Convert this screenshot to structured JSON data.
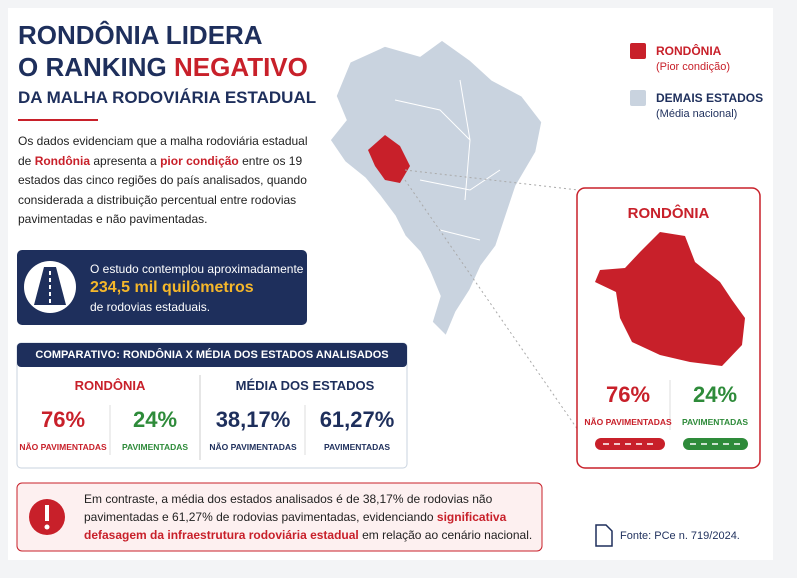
{
  "header": {
    "title_line1": "RONDÔNIA LIDERA",
    "title_line2_start": "O RANKING ",
    "title_line2_highlight": "NEGATIVO",
    "subtitle": "DA MALHA RODOVIÁRIA ESTADUAL"
  },
  "intro": {
    "part1": "Os dados evidenciam que a malha rodoviária estadual de ",
    "highlight1": "Rondônia",
    "part2": " apresenta a ",
    "highlight2": "pior condição",
    "part3": " entre os 19 estados das cinco regiões do país analisados, quando considerada a distribuição percentual entre rodovias pavimentadas e não pavimentadas."
  },
  "study": {
    "line1": "O estudo contemplou aproximadamente",
    "highlight": "234,5 mil quilômetros",
    "line3": "de rodovias estaduais."
  },
  "comparison": {
    "title": "COMPARATIVO: RONDÔNIA X MÉDIA DOS ESTADOS ANALISADOS",
    "groups": [
      {
        "name": "RONDÔNIA",
        "items": [
          {
            "value": "76%",
            "label": "NÃO PAVIMENTADAS"
          },
          {
            "value": "24%",
            "label": "PAVIMENTADAS"
          }
        ]
      },
      {
        "name": "MÉDIA DOS ESTADOS",
        "items": [
          {
            "value": "38,17%",
            "label": "NÃO PAVIMENTADAS"
          },
          {
            "value": "61,27%",
            "label": "PAVIMENTADAS"
          }
        ]
      }
    ]
  },
  "note": {
    "part1": "Em contraste, a média dos estados analisados é de 38,17% de rodovias não pavimentadas e 61,27% de rodovias pavimentadas, evidenciando ",
    "highlight": "significativa defasagem da infraestrutura rodoviária estadual",
    "part2": " em relação ao cenário nacional."
  },
  "legend": [
    {
      "name": "RONDÔNIA",
      "note": "(Pior condição)"
    },
    {
      "name": "DEMAIS ESTADOS",
      "note": "(Média nacional)"
    }
  ],
  "card": {
    "title": "RONDÔNIA",
    "items": [
      {
        "value": "76%",
        "label": "NÃO PAVIMENTADAS"
      },
      {
        "value": "24%",
        "label": "PAVIMENTADAS"
      }
    ]
  },
  "source": "Fonte: PCe n. 719/2024."
}
